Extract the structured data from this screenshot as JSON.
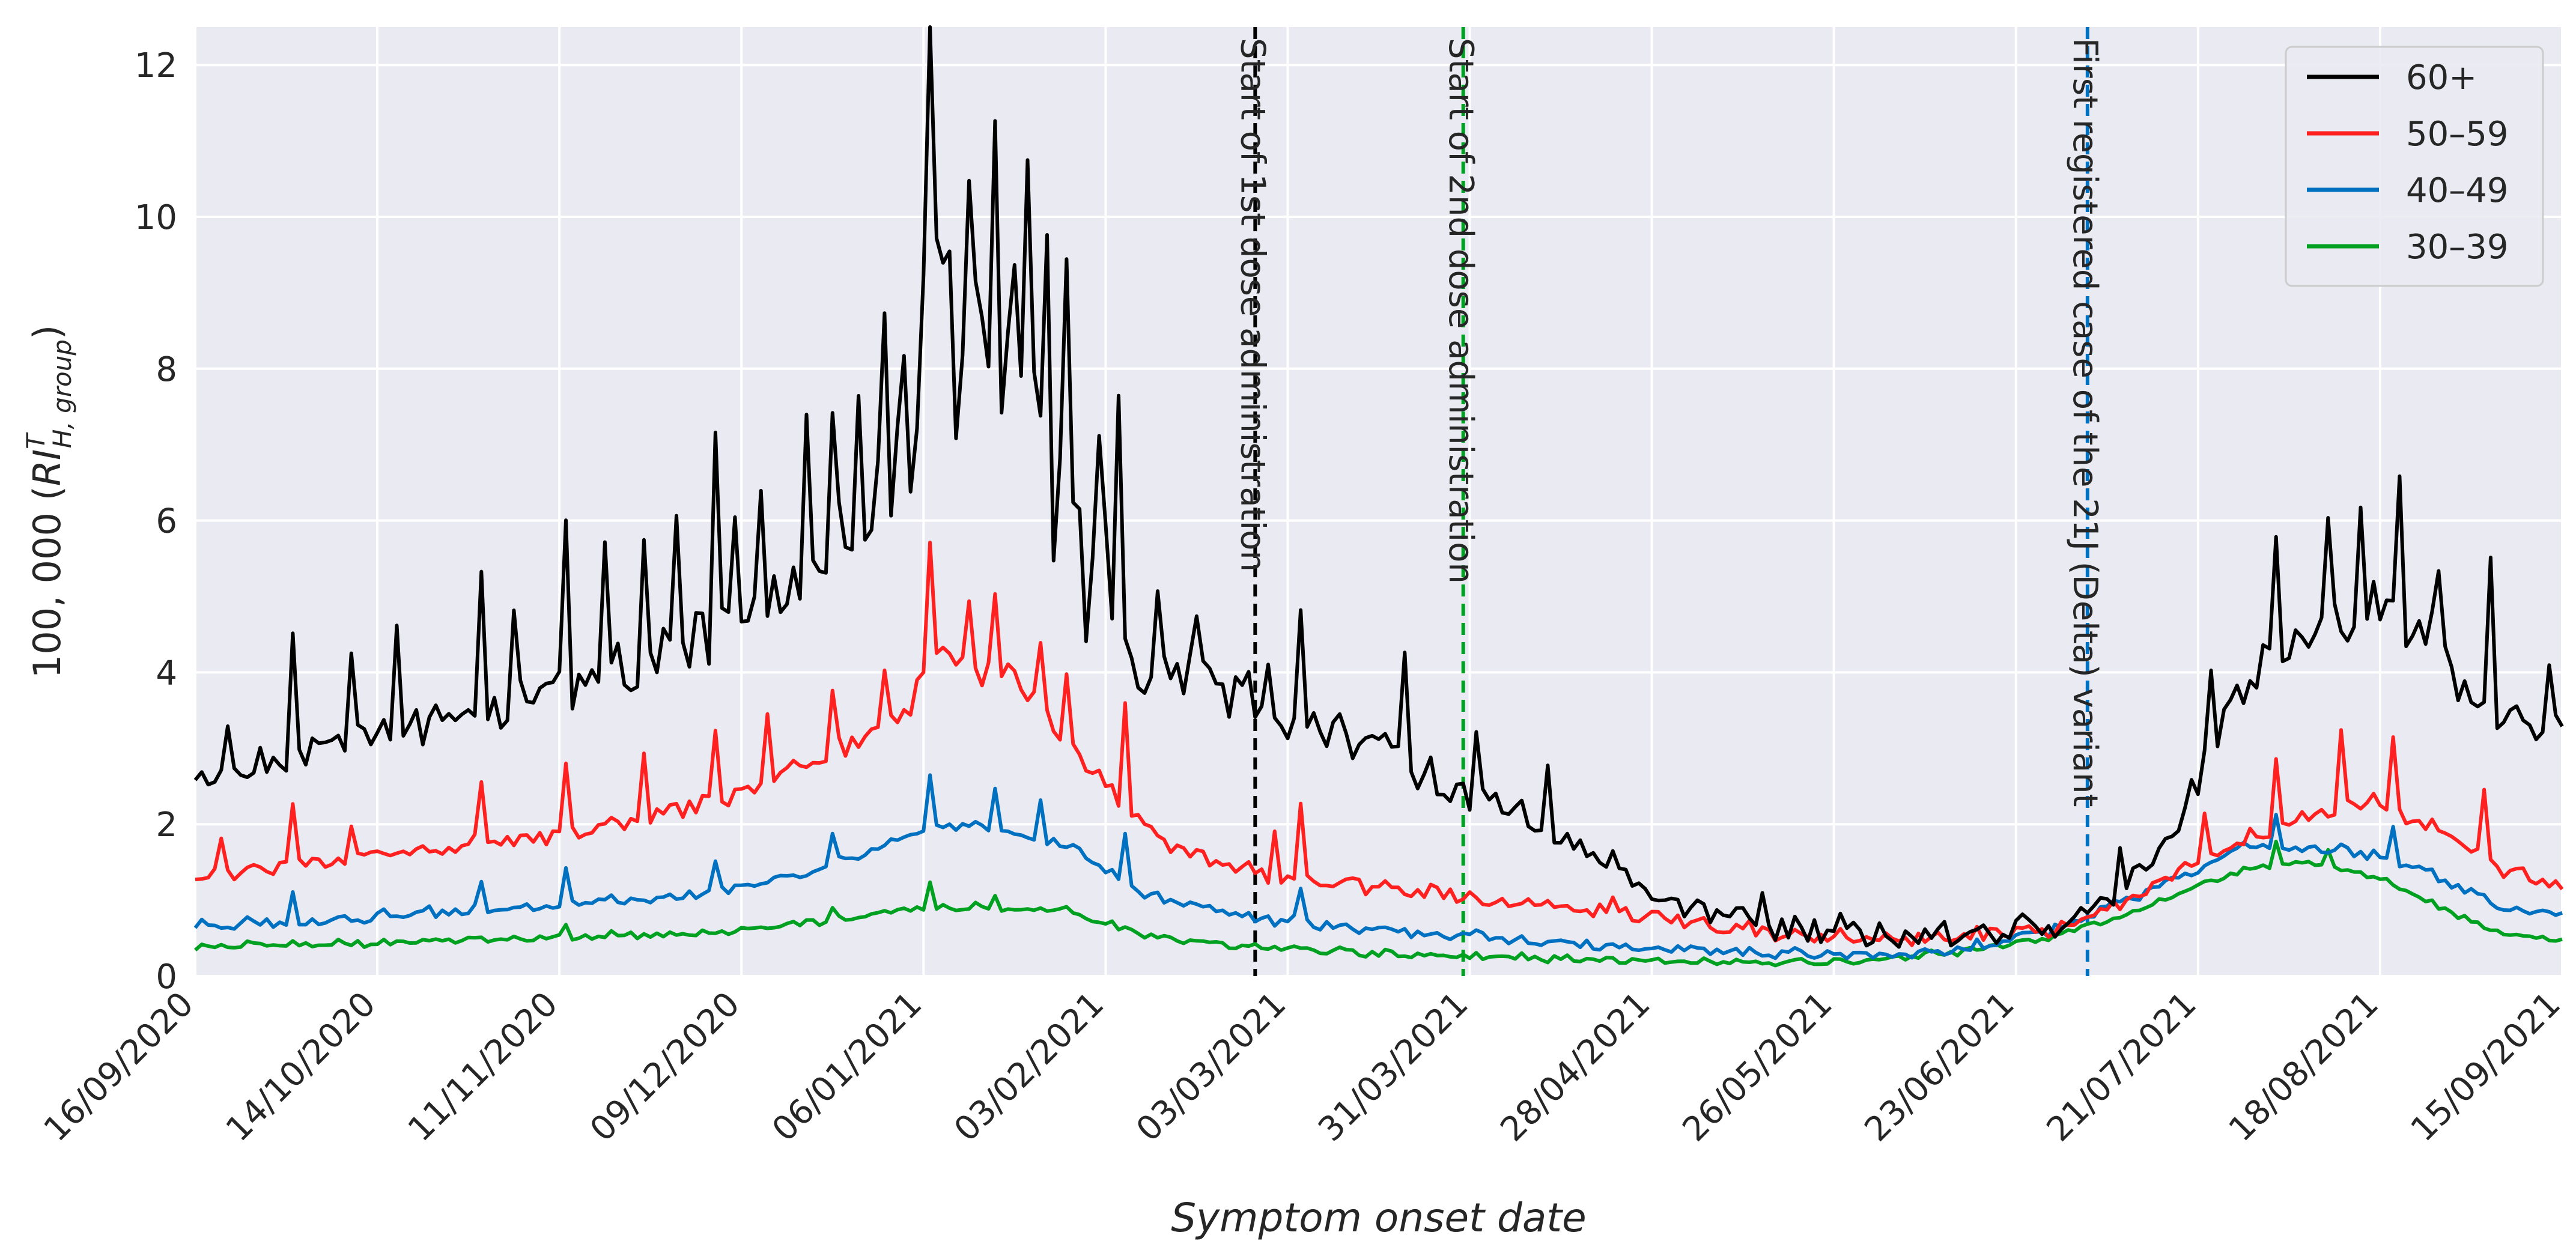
{
  "chart_data": {
    "type": "line",
    "xlabel": "Symptom onset date",
    "ylabel_prefix": "100, 000 (",
    "ylabel_symbol": "RI",
    "ylabel_sup": "T",
    "ylabel_sub": "H, group",
    "ylabel_suffix": ")",
    "ylim": [
      0,
      12.5
    ],
    "yticks": [
      0,
      2,
      4,
      6,
      8,
      10,
      12
    ],
    "ytick_labels": [
      "0",
      "2",
      "4",
      "6",
      "8",
      "10",
      "12"
    ],
    "x_start": "16/09/2020",
    "x_end": "15/09/2021",
    "num_days": 365,
    "xtick_labels": [
      "16/09/2020",
      "14/10/2020",
      "11/11/2020",
      "09/12/2020",
      "06/01/2021",
      "03/02/2021",
      "03/03/2021",
      "31/03/2021",
      "28/04/2021",
      "26/05/2021",
      "23/06/2021",
      "21/07/2021",
      "18/08/2021",
      "15/09/2021"
    ],
    "xtick_days": [
      0,
      28,
      56,
      84,
      112,
      140,
      168,
      196,
      224,
      252,
      280,
      308,
      336,
      364
    ],
    "grid": true,
    "legend_position": "top-right",
    "series": [
      {
        "name": "60+",
        "color": "#000000",
        "anchors": [
          [
            0,
            2.5
          ],
          [
            10,
            2.8
          ],
          [
            20,
            3.0
          ],
          [
            30,
            3.2
          ],
          [
            40,
            3.4
          ],
          [
            50,
            3.6
          ],
          [
            60,
            3.9
          ],
          [
            70,
            4.2
          ],
          [
            80,
            4.5
          ],
          [
            90,
            5.0
          ],
          [
            100,
            5.8
          ],
          [
            105,
            6.3
          ],
          [
            110,
            7.0
          ],
          [
            113,
            9.5
          ],
          [
            118,
            8.5
          ],
          [
            125,
            8.8
          ],
          [
            130,
            8.0
          ],
          [
            135,
            6.5
          ],
          [
            140,
            5.5
          ],
          [
            145,
            4.0
          ],
          [
            155,
            3.9
          ],
          [
            165,
            3.5
          ],
          [
            175,
            3.2
          ],
          [
            185,
            2.8
          ],
          [
            195,
            2.4
          ],
          [
            205,
            2.1
          ],
          [
            215,
            1.6
          ],
          [
            225,
            1.0
          ],
          [
            235,
            0.8
          ],
          [
            245,
            0.6
          ],
          [
            255,
            0.55
          ],
          [
            265,
            0.55
          ],
          [
            275,
            0.55
          ],
          [
            285,
            0.65
          ],
          [
            295,
            1.0
          ],
          [
            305,
            2.0
          ],
          [
            310,
            3.0
          ],
          [
            315,
            3.8
          ],
          [
            320,
            4.2
          ],
          [
            325,
            4.4
          ],
          [
            330,
            4.8
          ],
          [
            335,
            4.9
          ],
          [
            340,
            4.6
          ],
          [
            345,
            4.3
          ],
          [
            350,
            3.8
          ],
          [
            355,
            3.4
          ],
          [
            360,
            3.1
          ],
          [
            364,
            3.2
          ]
        ],
        "noise_amp": 0.17,
        "spikes": [
          [
            5,
            0.8
          ],
          [
            15,
            1.4
          ],
          [
            24,
            1.3
          ],
          [
            31,
            1.2
          ],
          [
            44,
            1.8
          ],
          [
            49,
            1.4
          ],
          [
            57,
            2.3
          ],
          [
            63,
            1.6
          ],
          [
            69,
            1.4
          ],
          [
            74,
            1.8
          ],
          [
            80,
            2.3
          ],
          [
            83,
            1.6
          ],
          [
            87,
            1.8
          ],
          [
            94,
            1.8
          ],
          [
            98,
            2.1
          ],
          [
            102,
            2.0
          ],
          [
            106,
            1.8
          ],
          [
            109,
            1.6
          ],
          [
            113,
            3.0
          ],
          [
            116,
            1.2
          ],
          [
            119,
            1.3
          ],
          [
            123,
            2.8
          ],
          [
            128,
            2.5
          ],
          [
            131,
            2.5
          ],
          [
            134,
            2.8
          ],
          [
            139,
            1.8
          ],
          [
            142,
            2.9
          ],
          [
            148,
            1.1
          ],
          [
            154,
            0.5
          ],
          [
            160,
            0.5
          ],
          [
            165,
            0.9
          ],
          [
            170,
            1.5
          ],
          [
            186,
            1.3
          ],
          [
            197,
            0.6
          ],
          [
            208,
            0.8
          ],
          [
            241,
            0.3
          ],
          [
            296,
            0.5
          ],
          [
            310,
            0.9
          ],
          [
            320,
            2.0
          ],
          [
            328,
            1.7
          ],
          [
            333,
            1.0
          ],
          [
            339,
            1.8
          ],
          [
            345,
            0.8
          ],
          [
            353,
            2.2
          ],
          [
            362,
            1.1
          ]
        ],
        "dips": [
          [
            117,
            1.5
          ],
          [
            124,
            1.6
          ],
          [
            132,
            1.4
          ],
          [
            137,
            1.2
          ],
          [
            141,
            1.0
          ]
        ]
      },
      {
        "name": "50–59",
        "color": "#ff2020",
        "anchors": [
          [
            0,
            1.3
          ],
          [
            20,
            1.5
          ],
          [
            40,
            1.7
          ],
          [
            60,
            1.9
          ],
          [
            80,
            2.3
          ],
          [
            100,
            3.0
          ],
          [
            110,
            3.5
          ],
          [
            113,
            4.5
          ],
          [
            120,
            4.0
          ],
          [
            125,
            4.0
          ],
          [
            130,
            3.5
          ],
          [
            140,
            2.5
          ],
          [
            150,
            1.7
          ],
          [
            165,
            1.3
          ],
          [
            180,
            1.2
          ],
          [
            195,
            1.05
          ],
          [
            210,
            0.95
          ],
          [
            225,
            0.75
          ],
          [
            240,
            0.6
          ],
          [
            255,
            0.5
          ],
          [
            270,
            0.5
          ],
          [
            285,
            0.6
          ],
          [
            295,
            0.9
          ],
          [
            305,
            1.4
          ],
          [
            315,
            1.8
          ],
          [
            325,
            2.1
          ],
          [
            335,
            2.3
          ],
          [
            345,
            1.9
          ],
          [
            355,
            1.4
          ],
          [
            364,
            1.2
          ]
        ],
        "noise_amp": 0.09,
        "spikes": [
          [
            4,
            0.4
          ],
          [
            15,
            0.8
          ],
          [
            24,
            0.5
          ],
          [
            44,
            0.9
          ],
          [
            57,
            0.9
          ],
          [
            69,
            0.9
          ],
          [
            80,
            1.0
          ],
          [
            88,
            0.9
          ],
          [
            98,
            0.8
          ],
          [
            106,
            0.8
          ],
          [
            113,
            1.2
          ],
          [
            119,
            1.0
          ],
          [
            123,
            1.2
          ],
          [
            130,
            0.9
          ],
          [
            134,
            0.9
          ],
          [
            143,
            1.3
          ],
          [
            166,
            0.6
          ],
          [
            170,
            1.0
          ],
          [
            218,
            0.2
          ],
          [
            309,
            0.6
          ],
          [
            320,
            0.9
          ],
          [
            330,
            1.0
          ],
          [
            338,
            1.0
          ],
          [
            352,
            0.9
          ]
        ],
        "dips": []
      },
      {
        "name": "40–49",
        "color": "#0070c0",
        "anchors": [
          [
            0,
            0.65
          ],
          [
            20,
            0.75
          ],
          [
            40,
            0.85
          ],
          [
            60,
            0.95
          ],
          [
            80,
            1.1
          ],
          [
            100,
            1.5
          ],
          [
            113,
            2.0
          ],
          [
            125,
            1.9
          ],
          [
            135,
            1.7
          ],
          [
            145,
            1.1
          ],
          [
            160,
            0.8
          ],
          [
            180,
            0.6
          ],
          [
            200,
            0.5
          ],
          [
            220,
            0.38
          ],
          [
            240,
            0.3
          ],
          [
            255,
            0.28
          ],
          [
            270,
            0.33
          ],
          [
            285,
            0.6
          ],
          [
            300,
            1.1
          ],
          [
            315,
            1.7
          ],
          [
            325,
            1.7
          ],
          [
            335,
            1.6
          ],
          [
            345,
            1.3
          ],
          [
            355,
            0.9
          ],
          [
            364,
            0.8
          ]
        ],
        "noise_amp": 0.06,
        "spikes": [
          [
            15,
            0.3
          ],
          [
            44,
            0.4
          ],
          [
            57,
            0.4
          ],
          [
            80,
            0.4
          ],
          [
            98,
            0.4
          ],
          [
            113,
            0.6
          ],
          [
            123,
            0.5
          ],
          [
            130,
            0.5
          ],
          [
            143,
            0.6
          ],
          [
            170,
            0.5
          ],
          [
            320,
            0.4
          ],
          [
            338,
            0.4
          ]
        ],
        "dips": []
      },
      {
        "name": "30–39",
        "color": "#00a020",
        "anchors": [
          [
            0,
            0.38
          ],
          [
            20,
            0.42
          ],
          [
            40,
            0.47
          ],
          [
            60,
            0.52
          ],
          [
            80,
            0.58
          ],
          [
            100,
            0.75
          ],
          [
            113,
            0.92
          ],
          [
            125,
            0.9
          ],
          [
            135,
            0.85
          ],
          [
            145,
            0.55
          ],
          [
            160,
            0.4
          ],
          [
            180,
            0.3
          ],
          [
            200,
            0.25
          ],
          [
            220,
            0.2
          ],
          [
            240,
            0.18
          ],
          [
            255,
            0.2
          ],
          [
            270,
            0.3
          ],
          [
            285,
            0.5
          ],
          [
            300,
            0.9
          ],
          [
            315,
            1.4
          ],
          [
            325,
            1.5
          ],
          [
            335,
            1.3
          ],
          [
            345,
            0.9
          ],
          [
            355,
            0.55
          ],
          [
            364,
            0.45
          ]
        ],
        "noise_amp": 0.04,
        "spikes": [
          [
            57,
            0.15
          ],
          [
            98,
            0.2
          ],
          [
            113,
            0.3
          ],
          [
            123,
            0.15
          ],
          [
            320,
            0.3
          ],
          [
            328,
            0.2
          ]
        ],
        "dips": []
      }
    ],
    "vertical_lines": [
      {
        "day": 163,
        "color": "#000000",
        "label": "Start of 1st dose administration"
      },
      {
        "day": 195,
        "color": "#00a020",
        "label": "Start of 2nd dose administration"
      },
      {
        "day": 291,
        "color": "#0070c0",
        "label": "First registered case of the 21J (Delta) variant"
      }
    ]
  }
}
